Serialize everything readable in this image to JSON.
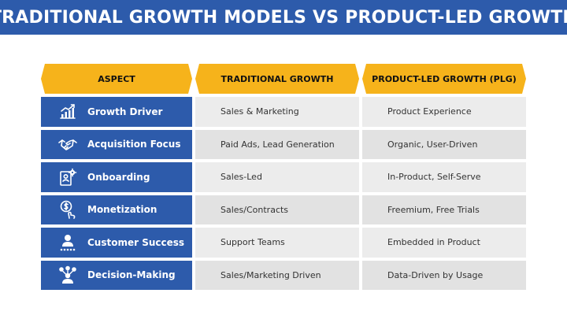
{
  "title": "TRADITIONAL GROWTH MODELS VS PRODUCT-LED GROWTH",
  "headers": [
    "ASPECT",
    "TRADITIONAL GROWTH",
    "PRODUCT-LED GROWTH (PLG)"
  ],
  "rows": [
    {
      "aspect": "Growth Driver",
      "icon": "growth-chart-icon",
      "traditional": "Sales & Marketing",
      "plg": "Product Experience"
    },
    {
      "aspect": "Acquisition Focus",
      "icon": "handshake-icon",
      "traditional": "Paid Ads, Lead Generation",
      "plg": "Organic, User-Driven"
    },
    {
      "aspect": "Onboarding",
      "icon": "onboarding-gear-icon",
      "traditional": "Sales-Led",
      "plg": "In-Product, Self-Serve"
    },
    {
      "aspect": "Monetization",
      "icon": "dollar-touch-icon",
      "traditional": "Sales/Contracts",
      "plg": "Freemium, Free Trials"
    },
    {
      "aspect": "Customer Success",
      "icon": "customer-rating-icon",
      "traditional": "Support Teams",
      "plg": "Embedded in Product"
    },
    {
      "aspect": "Decision-Making",
      "icon": "decision-person-icon",
      "traditional": "Sales/Marketing Driven",
      "plg": "Data-Driven by Usage"
    }
  ],
  "colors": {
    "title_bar": "#2d5bab",
    "header": "#f6b31b",
    "aspect_cell": "#2d5bab",
    "value_cell": "#ececec"
  }
}
